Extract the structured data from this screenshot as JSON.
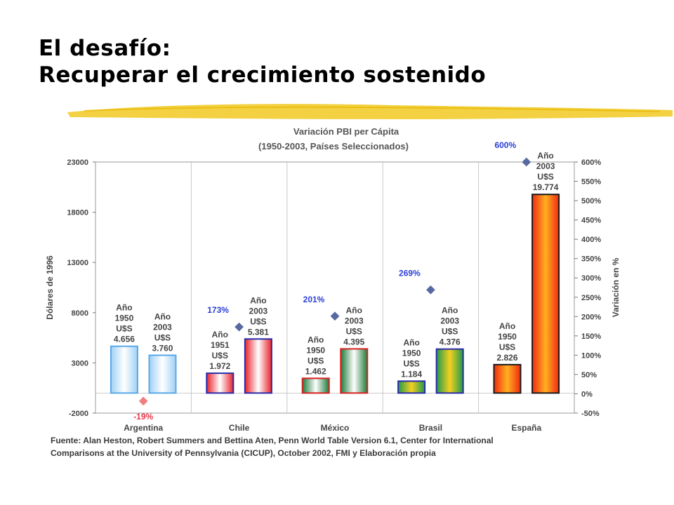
{
  "slide": {
    "title_line1": "El desafío:",
    "title_line2": "Recuperar el crecimiento sostenido",
    "underline_color": "#f2cc2e"
  },
  "chart_data": {
    "type": "bar",
    "title": "Variación PBI per Cápita",
    "subtitle": "(1950-2003, Países Seleccionados)",
    "ylabel": "Dólares de 1996",
    "y2label": "Variación en %",
    "ylim": [
      -2000,
      23000
    ],
    "yticks": [
      -2000,
      3000,
      8000,
      13000,
      18000,
      23000
    ],
    "y2lim": [
      -50,
      600
    ],
    "y2ticks": [
      "-50%",
      "0%",
      "50%",
      "100%",
      "150%",
      "200%",
      "250%",
      "300%",
      "350%",
      "400%",
      "450%",
      "500%",
      "550%",
      "600%"
    ],
    "categories": [
      "Argentina",
      "Chile",
      "México",
      "Brasil",
      "España"
    ],
    "grid": true,
    "groups": [
      {
        "country": "Argentina",
        "bars": [
          {
            "year": 1950,
            "value": 4656,
            "label": [
              "Año",
              "1950",
              "U$S",
              "4.656"
            ]
          },
          {
            "year": 2003,
            "value": 3760,
            "label": [
              "Año",
              "2003",
              "U$S",
              "3.760"
            ]
          }
        ],
        "variation": {
          "pct": -19,
          "label": "-19%",
          "color": "#e8374a"
        },
        "style": {
          "stroke": "#5aa8e8",
          "edge": "#9fd0f5",
          "mid": "#ffffff"
        }
      },
      {
        "country": "Chile",
        "bars": [
          {
            "year": 1951,
            "value": 1972,
            "label": [
              "Año",
              "1951",
              "U$S",
              "1.972"
            ]
          },
          {
            "year": 2003,
            "value": 5381,
            "label": [
              "Año",
              "2003",
              "U$S",
              "5.381"
            ]
          }
        ],
        "variation": {
          "pct": 173,
          "label": "173%",
          "color": "#2a3fd6"
        },
        "style": {
          "stroke": "#2a2aa8",
          "edge": "#e8202a",
          "mid": "#ffffff"
        }
      },
      {
        "country": "México",
        "bars": [
          {
            "year": 1950,
            "value": 1462,
            "label": [
              "Año",
              "1950",
              "U$S",
              "1.462"
            ]
          },
          {
            "year": 2003,
            "value": 4395,
            "label": [
              "Año",
              "2003",
              "U$S",
              "4.395"
            ]
          }
        ],
        "variation": {
          "pct": 201,
          "label": "201%",
          "color": "#2a3fd6"
        },
        "style": {
          "stroke": "#d82020",
          "edge": "#1c7a3a",
          "mid": "#ffffff"
        }
      },
      {
        "country": "Brasil",
        "bars": [
          {
            "year": 1950,
            "value": 1184,
            "label": [
              "Año",
              "1950",
              "U$S",
              "1.184"
            ]
          },
          {
            "year": 2003,
            "value": 4376,
            "label": [
              "Año",
              "2003",
              "U$S",
              "4.376"
            ]
          }
        ],
        "variation": {
          "pct": 269,
          "label": "269%",
          "color": "#2a3fd6"
        },
        "style": {
          "stroke": "#2a2aa8",
          "edge": "#1f9a4a",
          "mid": "#f4d020"
        }
      },
      {
        "country": "España",
        "bars": [
          {
            "year": 1950,
            "value": 2826,
            "label": [
              "Año",
              "1950",
              "U$S",
              "2.826"
            ]
          },
          {
            "year": 2003,
            "value": 19774,
            "label": [
              "Año",
              "2003",
              "U$S",
              "19.774"
            ]
          }
        ],
        "variation": {
          "pct": 600,
          "label": "600%",
          "color": "#2a3fd6"
        },
        "style": {
          "stroke": "#1a1a1a",
          "edge": "#f02a10",
          "mid": "#ffb020"
        }
      }
    ],
    "marker_color": "#5868a0",
    "source_line1": "Fuente: Alan Heston, Robert Summers and Bettina Aten, Penn World Table Version 6.1, Center for International",
    "source_line2": "Comparisons at the University of Pennsylvania (CICUP), October 2002, FMI y Elaboración propia"
  }
}
